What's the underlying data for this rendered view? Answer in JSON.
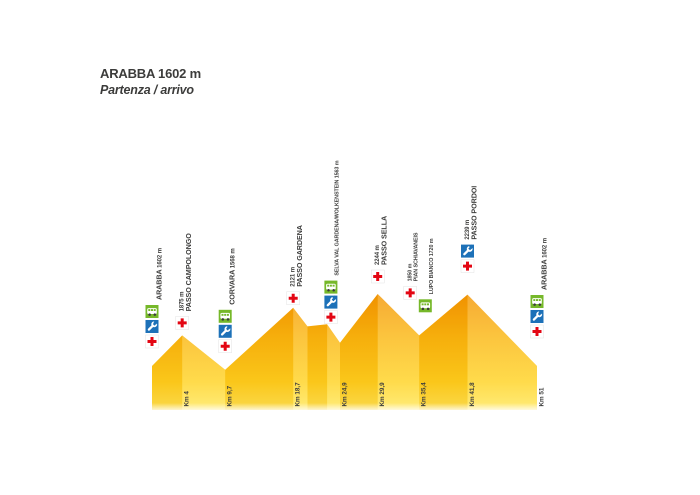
{
  "title": {
    "line1": "ARABBA 1602 m",
    "line2": "Partenza / arrivo"
  },
  "colors": {
    "text": "#3e3e3d",
    "profile_top": "#F39200",
    "profile_mid": "#FBB60E",
    "profile_low": "#FFD21E",
    "profile_bottom": "#FFE95A",
    "ascent_shade": "#D87C00",
    "descent_highlight": "#FFFFFF",
    "medical_red": "#E30613",
    "mechanic_blue": "#1D71B8",
    "refreshment_green": "#76B82A"
  },
  "chart_data": {
    "type": "area",
    "title": "ARABBA 1602 m",
    "subtitle": "Partenza / arrivo",
    "x_unit": "Km",
    "y_unit": "m",
    "xlim": [
      0,
      51
    ],
    "ylim": [
      1560,
      2250
    ],
    "grid": false,
    "legend": "none",
    "profile": [
      {
        "km": 0,
        "alt": 1602
      },
      {
        "km": 4,
        "alt": 1875
      },
      {
        "km": 9.7,
        "alt": 1568
      },
      {
        "km": 18.7,
        "alt": 2121
      },
      {
        "km": 20.6,
        "alt": 1955
      },
      {
        "km": 23.2,
        "alt": 1975
      },
      {
        "km": 24.9,
        "alt": 1810
      },
      {
        "km": 29.9,
        "alt": 2244
      },
      {
        "km": 35.4,
        "alt": 1875
      },
      {
        "km": 41.8,
        "alt": 2239
      },
      {
        "km": 51,
        "alt": 1602
      }
    ],
    "km_marks": [
      {
        "km": 4,
        "label": "Km 4"
      },
      {
        "km": 9.7,
        "label": "Km 9,7"
      },
      {
        "km": 18.7,
        "label": "Km 18,7"
      },
      {
        "km": 24.9,
        "label": "Km 24,9"
      },
      {
        "km": 29.9,
        "label": "Km 29,9"
      },
      {
        "km": 35.4,
        "label": "Km 35,4"
      },
      {
        "km": 41.8,
        "label": "Km 41,8"
      },
      {
        "km": 51,
        "label": "Km 51"
      }
    ],
    "stations": [
      {
        "id": "arabba-start",
        "km": 0,
        "name": "ARABBA",
        "alt": "1602 m",
        "two_line": false,
        "small": false,
        "lift": 18,
        "icons": [
          "refreshment",
          "mechanic",
          "medical"
        ]
      },
      {
        "id": "campolongo",
        "km": 4,
        "name": "PASSO CAMPOLONGO",
        "alt": "1875 m",
        "two_line": true,
        "small": false,
        "lift": 6,
        "icons": [
          "medical"
        ]
      },
      {
        "id": "corvara",
        "km": 9.7,
        "name": "CORVARA",
        "alt": "1568 m",
        "two_line": false,
        "small": false,
        "lift": 17,
        "icons": [
          "refreshment",
          "mechanic",
          "medical"
        ]
      },
      {
        "id": "gardena",
        "km": 18.7,
        "name": "PASSO GARDENA",
        "alt": "2121 m",
        "two_line": true,
        "small": false,
        "lift": 3,
        "icons": [
          "medical"
        ]
      },
      {
        "id": "selva",
        "km": 23.7,
        "name": "SELVA VAL GARDENA/WOLKENSTEIN",
        "alt": "1563 m",
        "two_line": false,
        "small": true,
        "lift": 6,
        "icons": [
          "refreshment",
          "mechanic",
          "medical"
        ]
      },
      {
        "id": "sella",
        "km": 29.9,
        "name": "PASSO SELLA",
        "alt": "2244 m",
        "two_line": true,
        "small": false,
        "lift": 11,
        "icons": [
          "medical"
        ]
      },
      {
        "id": "pian-schiavaneis",
        "km": 34.2,
        "name": "PIAN SCHIAVANEIS",
        "alt": "1850 m",
        "two_line": true,
        "small": true,
        "lift": 27,
        "icons": [
          "medical"
        ]
      },
      {
        "id": "lupo-bianco",
        "km": 36.2,
        "name": "LUPO BIANCO",
        "alt": "1720 m",
        "two_line": false,
        "small": true,
        "lift": 18,
        "icons": [
          "refreshment"
        ]
      },
      {
        "id": "pordoi",
        "km": 41.8,
        "name": "PASSO PORDOI",
        "alt": "2239 m",
        "two_line": true,
        "small": false,
        "lift": 22,
        "icons": [
          "mechanic",
          "medical"
        ]
      },
      {
        "id": "arabba-finish",
        "km": 51,
        "name": "ARABBA",
        "alt": "1602 m",
        "two_line": false,
        "small": false,
        "lift": 28,
        "icons": [
          "refreshment",
          "mechanic",
          "medical"
        ]
      }
    ]
  }
}
